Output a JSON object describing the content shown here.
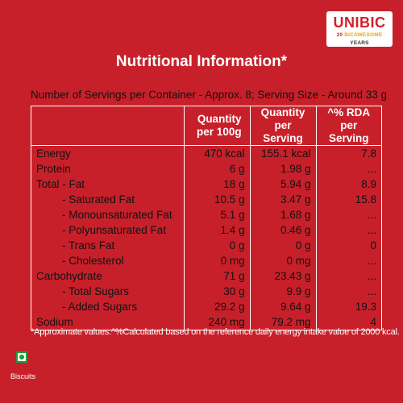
{
  "brand": {
    "name": "UNIBIC",
    "tag_num": "20",
    "tag_mid": "BICAWESOME",
    "tag_end": "YEARS"
  },
  "title": "Nutritional Information*",
  "serving_info": "Number of Servings per Container - Approx. 8; Serving Size - Around 33 g",
  "table": {
    "headers": [
      "",
      "Quantity per 100g",
      "Quantity per Serving",
      "^% RDA per Serving"
    ],
    "rows": [
      {
        "label": "Energy",
        "per100": "470 kcal",
        "perServing": "155.1 kcal",
        "rda": "7.8",
        "indent": false
      },
      {
        "label": "Protein",
        "per100": "6 g",
        "perServing": "1.98 g",
        "rda": "...",
        "indent": false
      },
      {
        "label": "Total -  Fat",
        "per100": "18 g",
        "perServing": "5.94 g",
        "rda": "8.9",
        "indent": false
      },
      {
        "label": "- Saturated Fat",
        "per100": "10.5 g",
        "perServing": "3.47 g",
        "rda": "15.8",
        "indent": true
      },
      {
        "label": "- Monounsaturated Fat",
        "per100": "5.1 g",
        "perServing": "1.68 g",
        "rda": "...",
        "indent": true
      },
      {
        "label": "- Polyunsaturated Fat",
        "per100": "1.4 g",
        "perServing": "0.46 g",
        "rda": "...",
        "indent": true
      },
      {
        "label": "- Trans Fat",
        "per100": "0 g",
        "perServing": "0 g",
        "rda": "0",
        "indent": true
      },
      {
        "label": "- Cholesterol",
        "per100": "0 mg",
        "perServing": "0 mg",
        "rda": "...",
        "indent": true
      },
      {
        "label": "Carbohydrate",
        "per100": "71 g",
        "perServing": "23.43 g",
        "rda": "...",
        "indent": false
      },
      {
        "label": "- Total Sugars",
        "per100": "30 g",
        "perServing": "9.9 g",
        "rda": "...",
        "indent": true
      },
      {
        "label": "- Added Sugars",
        "per100": "29.2 g",
        "perServing": "9.64 g",
        "rda": "19.3",
        "indent": true
      },
      {
        "label": "Sodium",
        "per100": "240 mg",
        "perServing": "79.2 mg",
        "rda": "4",
        "indent": false
      }
    ]
  },
  "footnote": "*Approximate values.^%Calculated based on the reference daily energy intake value of 2000 kcal.",
  "category": "Biscuits",
  "colors": {
    "background": "#c8202a",
    "veg_mark": "#1e9d3a"
  }
}
